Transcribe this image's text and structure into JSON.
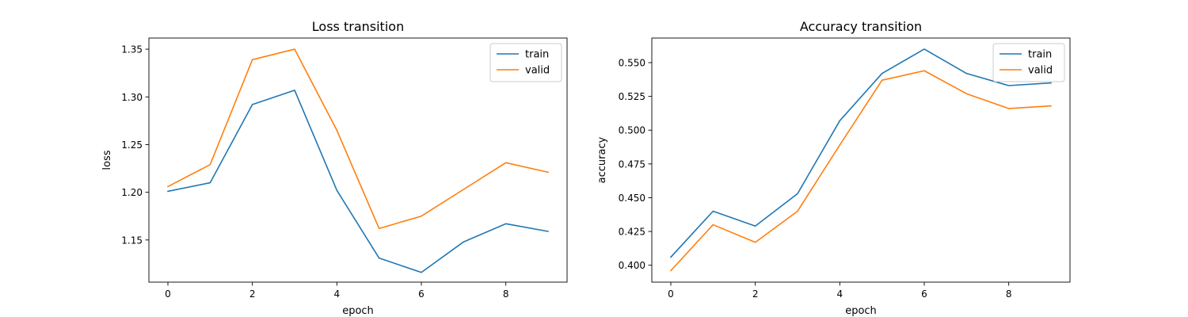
{
  "chart_data": [
    {
      "type": "line",
      "title": "Loss transition",
      "xlabel": "epoch",
      "ylabel": "loss",
      "x": [
        0,
        1,
        2,
        3,
        4,
        5,
        6,
        7,
        8,
        9
      ],
      "xlim": [
        -0.45,
        9.45
      ],
      "ylim": [
        1.1058,
        1.3617
      ],
      "xticks": [
        "0",
        "2",
        "4",
        "6",
        "8"
      ],
      "yticks": [
        "1.15",
        "1.20",
        "1.25",
        "1.30",
        "1.35"
      ],
      "legend_position": "top-right",
      "grid": false,
      "series": [
        {
          "name": "train",
          "color": "#1f77b4",
          "values": [
            1.201,
            1.21,
            1.292,
            1.307,
            1.202,
            1.131,
            1.116,
            1.148,
            1.167,
            1.159
          ]
        },
        {
          "name": "valid",
          "color": "#ff7f0e",
          "values": [
            1.206,
            1.229,
            1.339,
            1.35,
            1.265,
            1.162,
            1.175,
            1.203,
            1.231,
            1.221
          ]
        }
      ]
    },
    {
      "type": "line",
      "title": "Accuracy transition",
      "xlabel": "epoch",
      "ylabel": "accuracy",
      "x": [
        0,
        1,
        2,
        3,
        4,
        5,
        6,
        7,
        8,
        9
      ],
      "xlim": [
        -0.45,
        9.45
      ],
      "ylim": [
        0.3875,
        0.5682
      ],
      "xticks": [
        "0",
        "2",
        "4",
        "6",
        "8"
      ],
      "yticks": [
        "0.400",
        "0.425",
        "0.450",
        "0.475",
        "0.500",
        "0.525",
        "0.550"
      ],
      "legend_position": "top-right",
      "grid": false,
      "series": [
        {
          "name": "train",
          "color": "#1f77b4",
          "values": [
            0.406,
            0.44,
            0.429,
            0.453,
            0.507,
            0.542,
            0.56,
            0.542,
            0.533,
            0.535
          ]
        },
        {
          "name": "valid",
          "color": "#ff7f0e",
          "values": [
            0.396,
            0.43,
            0.417,
            0.44,
            0.489,
            0.537,
            0.544,
            0.527,
            0.516,
            0.518
          ]
        }
      ]
    }
  ]
}
